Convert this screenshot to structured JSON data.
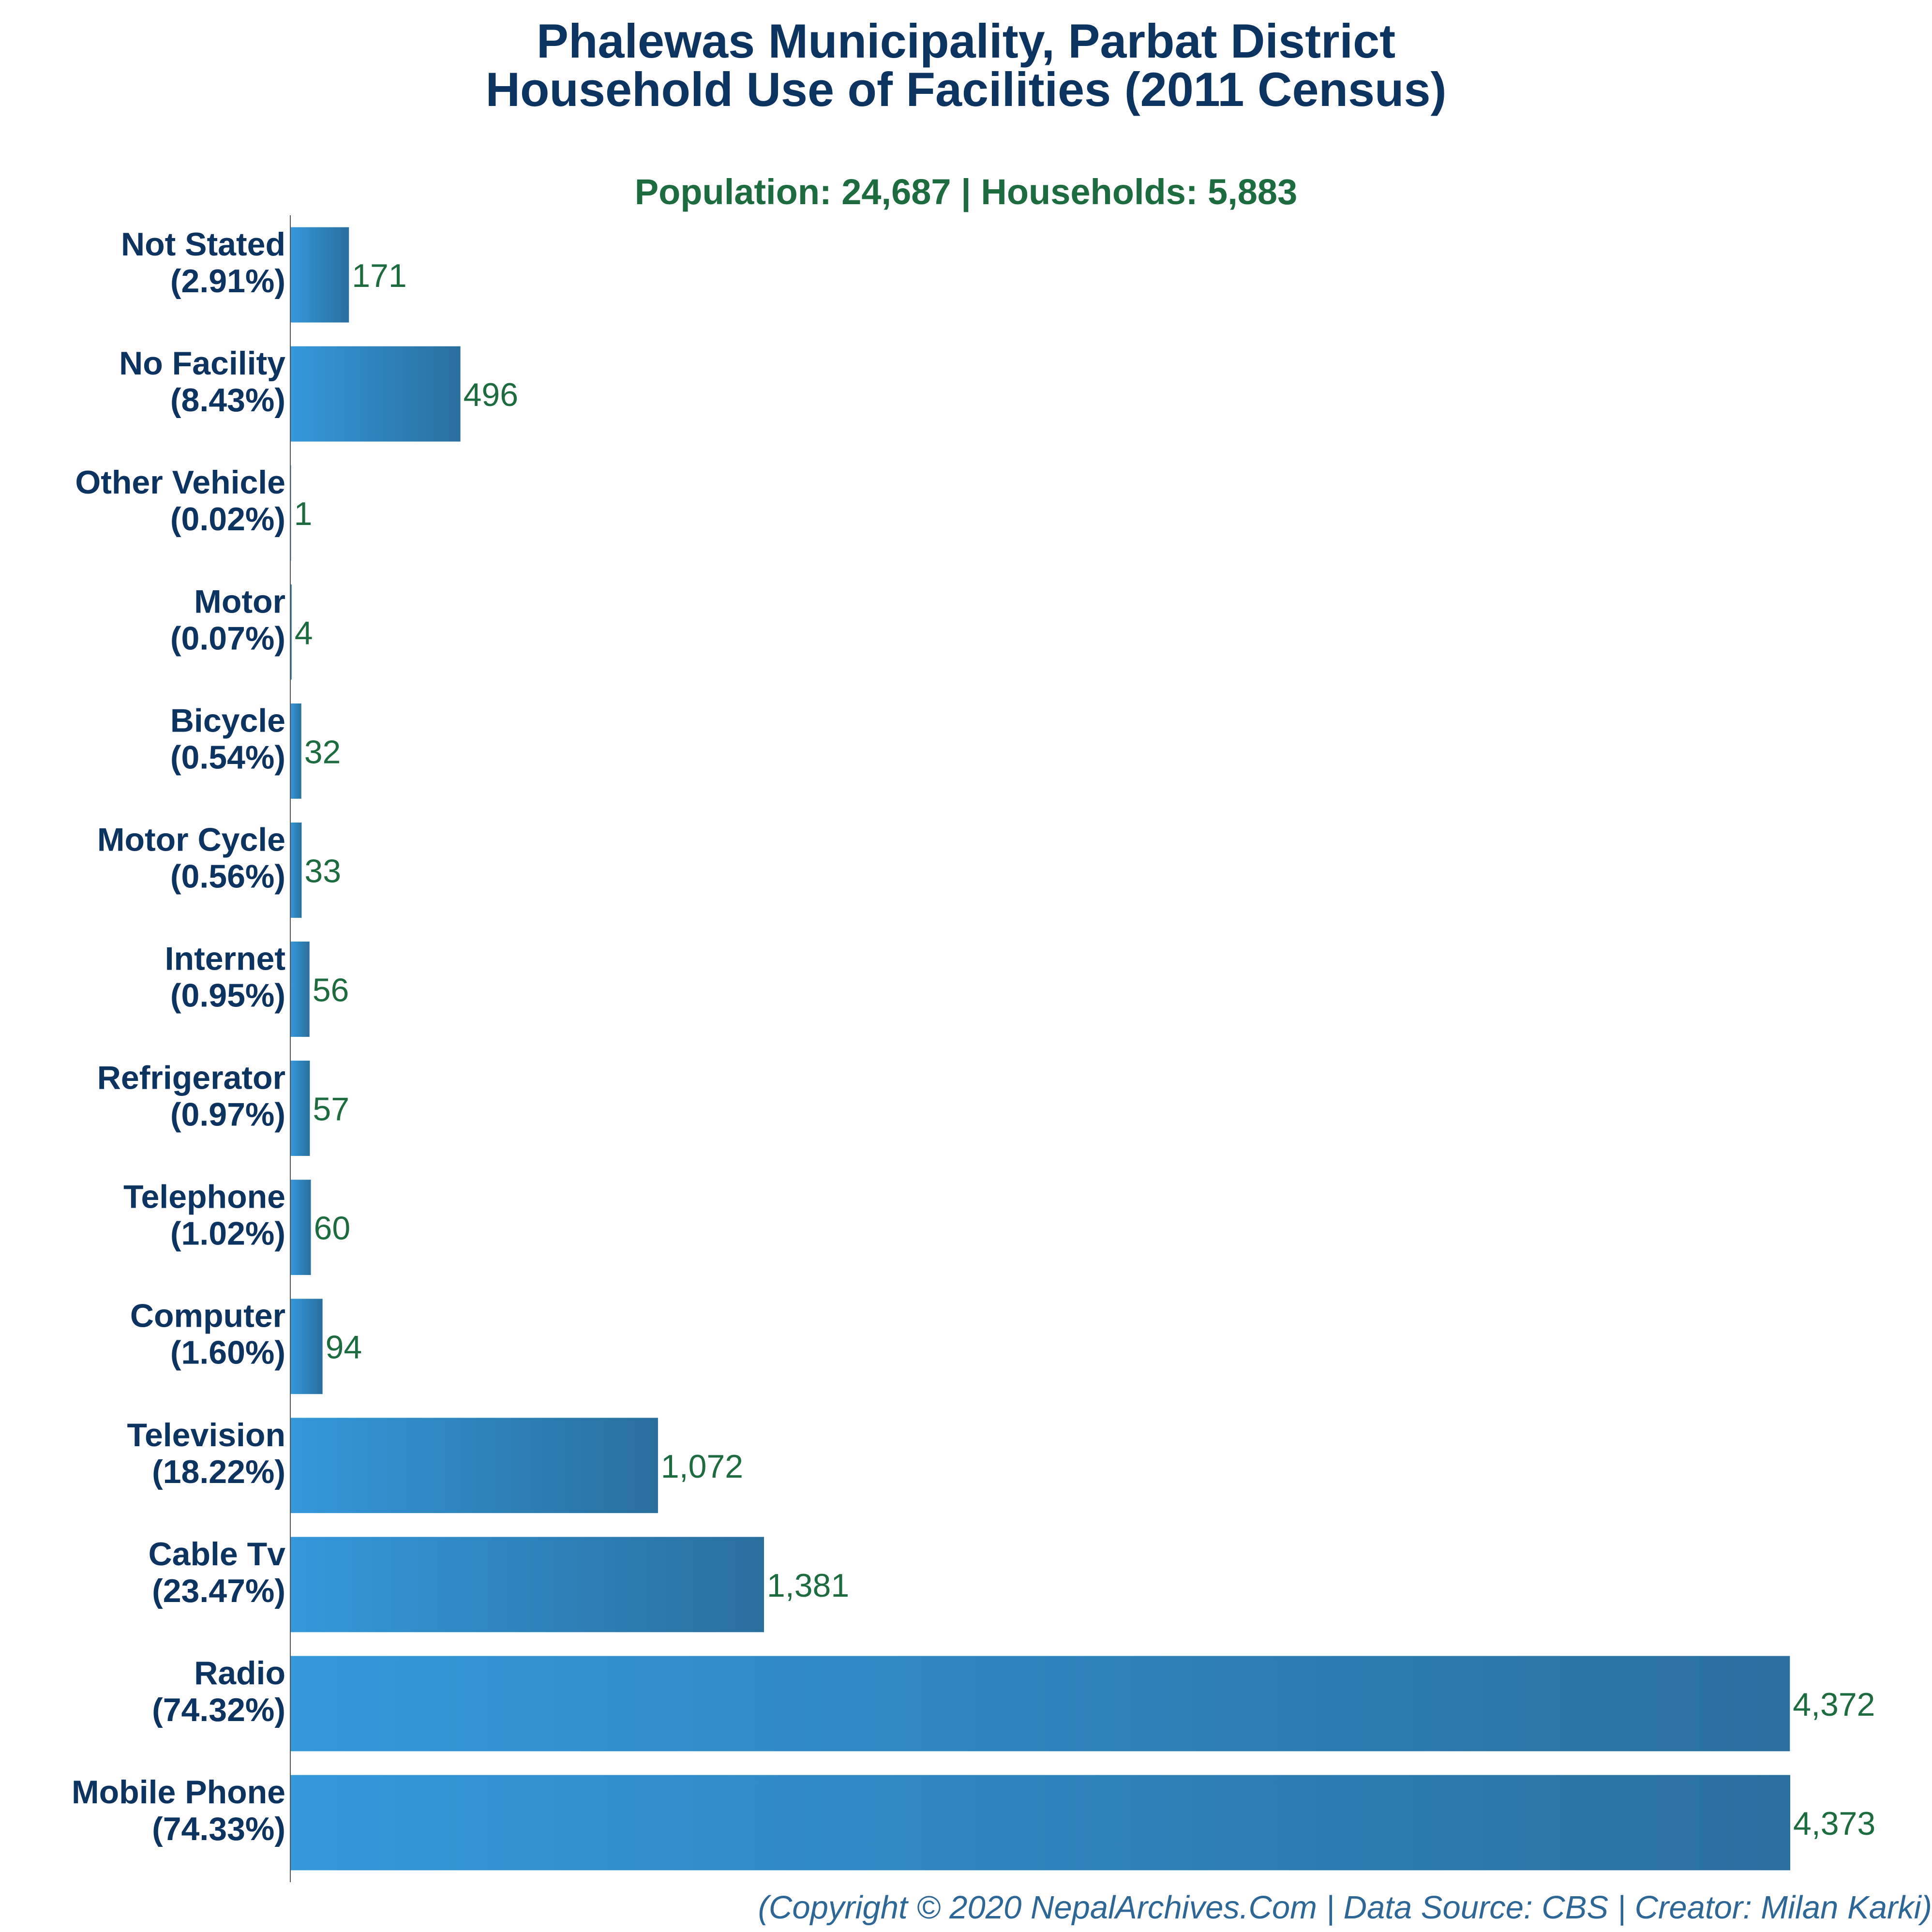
{
  "title_line1": "Phalewas Municipality, Parbat District",
  "title_line2": "Household Use of Facilities (2011 Census)",
  "subtitle": "Population: 24,687 | Households: 5,883",
  "footer": "(Copyright © 2020 NepalArchives.Com | Data Source: CBS | Creator: Milan Karki)",
  "colors": {
    "title": "#0d3461",
    "category_label": "#0d3461",
    "value_label": "#1d6b3f",
    "bar_left": "#3498db",
    "bar_right": "#2a6f9e",
    "axis": "#555555",
    "footer": "#2e6696"
  },
  "chart_data": {
    "type": "bar",
    "orientation": "horizontal",
    "categories": [
      "Not Stated",
      "No Facility",
      "Other Vehicle",
      "Motor",
      "Bicycle",
      "Motor Cycle",
      "Internet",
      "Refrigerator",
      "Telephone",
      "Computer",
      "Television",
      "Cable Tv",
      "Radio",
      "Mobile Phone"
    ],
    "percent_labels": [
      "(2.91%)",
      "(8.43%)",
      "(0.02%)",
      "(0.07%)",
      "(0.54%)",
      "(0.56%)",
      "(0.95%)",
      "(0.97%)",
      "(1.02%)",
      "(1.60%)",
      "(18.22%)",
      "(23.47%)",
      "(74.32%)",
      "(74.33%)"
    ],
    "values": [
      171,
      496,
      1,
      4,
      32,
      33,
      56,
      57,
      60,
      94,
      1072,
      1381,
      4372,
      4373
    ],
    "value_labels": [
      "171",
      "496",
      "1",
      "4",
      "32",
      "33",
      "56",
      "57",
      "60",
      "94",
      "1,072",
      "1,381",
      "4,372",
      "4,373"
    ],
    "xlim": [
      0,
      4373
    ],
    "grid": false,
    "legend": "none"
  }
}
